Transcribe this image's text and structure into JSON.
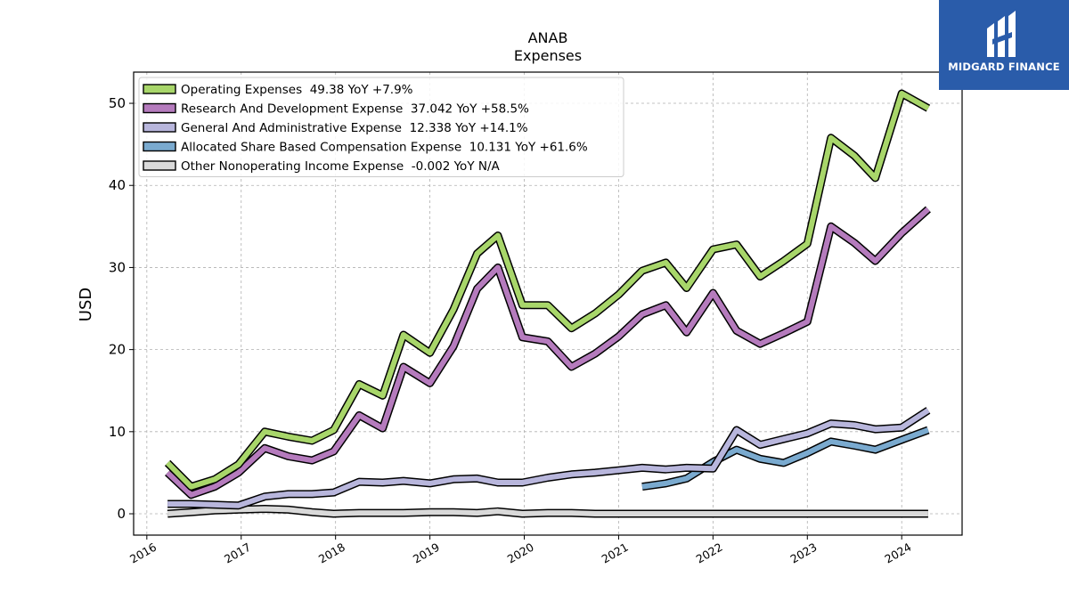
{
  "brand": {
    "name": "MIDGARD FINANCE"
  },
  "chart_data": {
    "type": "line",
    "title": "ANAB",
    "subtitle": "Expenses",
    "xlabel": "",
    "ylabel": "USD",
    "xlim": [
      2015.86,
      2024.64
    ],
    "ylim": [
      -2.6,
      53.8
    ],
    "grid": true,
    "legend_position": "top-left",
    "x_ticks": [
      2016,
      2017,
      2018,
      2019,
      2020,
      2021,
      2022,
      2023,
      2024
    ],
    "y_ticks": [
      0,
      10,
      20,
      30,
      40,
      50
    ],
    "series": [
      {
        "name": "Operating Expenses",
        "legend": "Operating Expenses  49.38 YoY +7.9%",
        "color": "#a8d66a",
        "width": 6,
        "x": [
          2016.22,
          2016.47,
          2016.72,
          2016.97,
          2017.25,
          2017.5,
          2017.75,
          2017.98,
          2018.25,
          2018.5,
          2018.72,
          2019.0,
          2019.25,
          2019.5,
          2019.72,
          2019.98,
          2020.25,
          2020.5,
          2020.75,
          2021.0,
          2021.25,
          2021.5,
          2021.72,
          2022.0,
          2022.25,
          2022.5,
          2022.75,
          2023.0,
          2023.25,
          2023.5,
          2023.72,
          2024.0,
          2024.28
        ],
        "y": [
          6.2,
          3.3,
          4.2,
          6.0,
          10.0,
          9.4,
          8.9,
          10.2,
          15.8,
          14.4,
          21.8,
          19.6,
          24.9,
          31.7,
          33.9,
          25.4,
          25.4,
          22.6,
          24.4,
          26.7,
          29.6,
          30.6,
          27.5,
          32.2,
          32.8,
          28.9,
          30.8,
          32.9,
          45.8,
          43.6,
          40.9,
          51.2,
          49.4
        ]
      },
      {
        "name": "Research And Development Expense",
        "legend": "Research And Development Expense  37.042 YoY +58.5%",
        "color": "#b57bbd",
        "width": 6,
        "x": [
          2016.22,
          2016.47,
          2016.72,
          2016.97,
          2017.25,
          2017.5,
          2017.75,
          2017.98,
          2018.25,
          2018.5,
          2018.72,
          2019.0,
          2019.25,
          2019.5,
          2019.72,
          2019.98,
          2020.25,
          2020.5,
          2020.75,
          2021.0,
          2021.25,
          2021.5,
          2021.72,
          2022.0,
          2022.25,
          2022.5,
          2022.75,
          2023.0,
          2023.25,
          2023.5,
          2023.72,
          2024.0,
          2024.28
        ],
        "y": [
          5.0,
          2.3,
          3.3,
          5.0,
          8.0,
          7.0,
          6.5,
          7.6,
          12.0,
          10.4,
          17.9,
          15.9,
          20.4,
          27.4,
          30.0,
          21.5,
          21.0,
          17.9,
          19.5,
          21.6,
          24.3,
          25.4,
          22.1,
          26.9,
          22.3,
          20.7,
          22.0,
          23.4,
          35.0,
          33.0,
          30.8,
          34.2,
          37.1
        ]
      },
      {
        "name": "General And Administrative Expense",
        "legend": "General And Administrative Expense  12.338 YoY +14.1%",
        "color": "#b8b6dc",
        "width": 6,
        "x": [
          2016.22,
          2016.47,
          2016.72,
          2016.97,
          2017.25,
          2017.5,
          2017.75,
          2017.98,
          2018.25,
          2018.5,
          2018.72,
          2019.0,
          2019.25,
          2019.5,
          2019.72,
          2019.98,
          2020.25,
          2020.5,
          2020.75,
          2021.0,
          2021.25,
          2021.5,
          2021.72,
          2022.0,
          2022.25,
          2022.5,
          2022.75,
          2023.0,
          2023.25,
          2023.5,
          2023.72,
          2024.0,
          2024.28
        ],
        "y": [
          1.2,
          1.2,
          1.1,
          1.0,
          2.1,
          2.4,
          2.4,
          2.6,
          3.9,
          3.8,
          4.0,
          3.7,
          4.2,
          4.3,
          3.8,
          3.8,
          4.4,
          4.8,
          5.0,
          5.3,
          5.6,
          5.4,
          5.6,
          5.5,
          10.2,
          8.4,
          9.1,
          9.8,
          11.0,
          10.8,
          10.3,
          10.5,
          12.6
        ]
      },
      {
        "name": "Allocated Share Based Compensation Expense",
        "legend": "Allocated Share Based Compensation Expense  10.131 YoY +61.6%",
        "color": "#7aaacf",
        "width": 6,
        "x": [
          2021.25,
          2021.5,
          2021.72,
          2022.0,
          2022.25,
          2022.5,
          2022.75,
          2023.0,
          2023.25,
          2023.5,
          2023.72,
          2024.0,
          2024.28
        ],
        "y": [
          3.3,
          3.7,
          4.3,
          6.3,
          7.8,
          6.7,
          6.2,
          7.4,
          8.8,
          8.3,
          7.8,
          9.0,
          10.2
        ]
      },
      {
        "name": "Other Nonoperating Income Expense",
        "legend": "Other Nonoperating Income Expense  -0.002 YoY N/A",
        "color": "#d9d9d9",
        "width": 6,
        "x": [
          2016.22,
          2016.47,
          2016.72,
          2016.97,
          2017.25,
          2017.5,
          2017.75,
          2017.98,
          2018.25,
          2018.5,
          2018.72,
          2019.0,
          2019.25,
          2019.5,
          2019.72,
          2019.98,
          2020.25,
          2020.5,
          2020.75,
          2021.0,
          2021.25,
          2021.5,
          2021.72,
          2022.0,
          2022.25,
          2022.5,
          2022.75,
          2023.0,
          2023.25,
          2023.5,
          2023.72,
          2024.0,
          2024.28
        ],
        "y": [
          0.0,
          0.2,
          0.4,
          0.5,
          0.6,
          0.5,
          0.2,
          0.0,
          0.1,
          0.1,
          0.1,
          0.2,
          0.2,
          0.1,
          0.3,
          0.0,
          0.1,
          0.1,
          0.0,
          0.0,
          0.0,
          0.0,
          0.0,
          0.0,
          0.0,
          0.0,
          0.0,
          0.0,
          0.0,
          0.0,
          0.0,
          0.0,
          0.0
        ]
      }
    ]
  }
}
